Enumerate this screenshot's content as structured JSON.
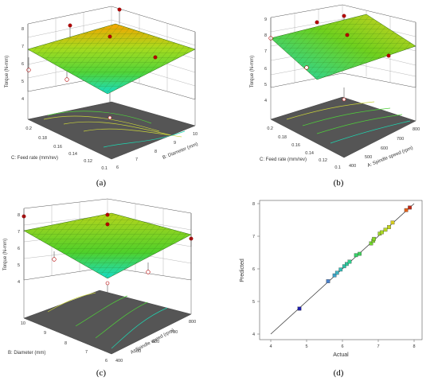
{
  "panels": [
    {
      "id": "a",
      "label": "(a)",
      "zlabel": "Torque (N-mm)",
      "zticks": [
        "4",
        "5",
        "6",
        "7",
        "8"
      ],
      "xlabel": "B: Diameter (mm)",
      "xticks": [
        "6",
        "7",
        "8",
        "9",
        "10"
      ],
      "ylabel": "C: Feed rate (mm/rev)",
      "yticks": [
        "0.1",
        "0.12",
        "0.14",
        "0.16",
        "0.18",
        "0.2"
      ]
    },
    {
      "id": "b",
      "label": "(b)",
      "zlabel": "Torque (N-mm)",
      "zticks": [
        "4",
        "5",
        "6",
        "7",
        "8",
        "9"
      ],
      "xlabel": "A: Spindle speed (rpm)",
      "xticks": [
        "400",
        "500",
        "600",
        "700",
        "800"
      ],
      "ylabel": "C: Feed rate (mm/rev)",
      "yticks": [
        "0.1",
        "0.12",
        "0.14",
        "0.16",
        "0.18",
        "0.2"
      ]
    },
    {
      "id": "c",
      "label": "(c)",
      "zlabel": "Torque (N-mm)",
      "zticks": [
        "4",
        "5",
        "6",
        "7",
        "8"
      ],
      "xlabel": "A: Spindle speed (rpm)",
      "xticks": [
        "400",
        "500",
        "600",
        "700",
        "800"
      ],
      "ylabel": "B: Diameter (mm)",
      "yticks": [
        "6",
        "7",
        "8",
        "9",
        "10"
      ]
    }
  ],
  "colors": {
    "surface_high": "#f6a300",
    "surface_mid": "#6fd01e",
    "surface_low": "#17dcc8",
    "floor": "#555555",
    "point_red": "#b40000",
    "point_pink": "#f1a3a3",
    "line": "#555555"
  },
  "chart_data": {
    "type": "scatter",
    "panel_label": "(d)",
    "xlabel": "Actual",
    "ylabel": "Predicted",
    "xlim": [
      4,
      8
    ],
    "ylim": [
      4,
      8
    ],
    "xticks": [
      "4",
      "5",
      "6",
      "7",
      "8"
    ],
    "yticks": [
      "4",
      "5",
      "6",
      "7",
      "8"
    ],
    "reference_line": [
      [
        4,
        4
      ],
      [
        8,
        8
      ]
    ],
    "points": [
      {
        "x": 4.8,
        "y": 4.78,
        "color": "#1f1fa8"
      },
      {
        "x": 5.6,
        "y": 5.62,
        "color": "#4a7fc8"
      },
      {
        "x": 5.78,
        "y": 5.8,
        "color": "#3fa2c8"
      },
      {
        "x": 5.85,
        "y": 5.88,
        "color": "#40b4c0"
      },
      {
        "x": 5.95,
        "y": 5.98,
        "color": "#36bcb6"
      },
      {
        "x": 6.05,
        "y": 6.08,
        "color": "#30c4aa"
      },
      {
        "x": 6.12,
        "y": 6.15,
        "color": "#2cc89a"
      },
      {
        "x": 6.2,
        "y": 6.22,
        "color": "#2ecc8a"
      },
      {
        "x": 6.38,
        "y": 6.42,
        "color": "#36cf6a"
      },
      {
        "x": 6.48,
        "y": 6.46,
        "color": "#3fd05a"
      },
      {
        "x": 6.8,
        "y": 6.78,
        "color": "#70d32e"
      },
      {
        "x": 6.86,
        "y": 6.86,
        "color": "#80d52a"
      },
      {
        "x": 6.88,
        "y": 6.92,
        "color": "#88d628"
      },
      {
        "x": 7.04,
        "y": 7.08,
        "color": "#a0d825"
      },
      {
        "x": 7.1,
        "y": 7.12,
        "color": "#a8d824"
      },
      {
        "x": 7.2,
        "y": 7.2,
        "color": "#b6d822"
      },
      {
        "x": 7.3,
        "y": 7.28,
        "color": "#c4d420"
      },
      {
        "x": 7.4,
        "y": 7.42,
        "color": "#d4ca1e"
      },
      {
        "x": 7.78,
        "y": 7.8,
        "color": "#e0601a"
      },
      {
        "x": 7.88,
        "y": 7.88,
        "color": "#c02a16"
      }
    ]
  }
}
